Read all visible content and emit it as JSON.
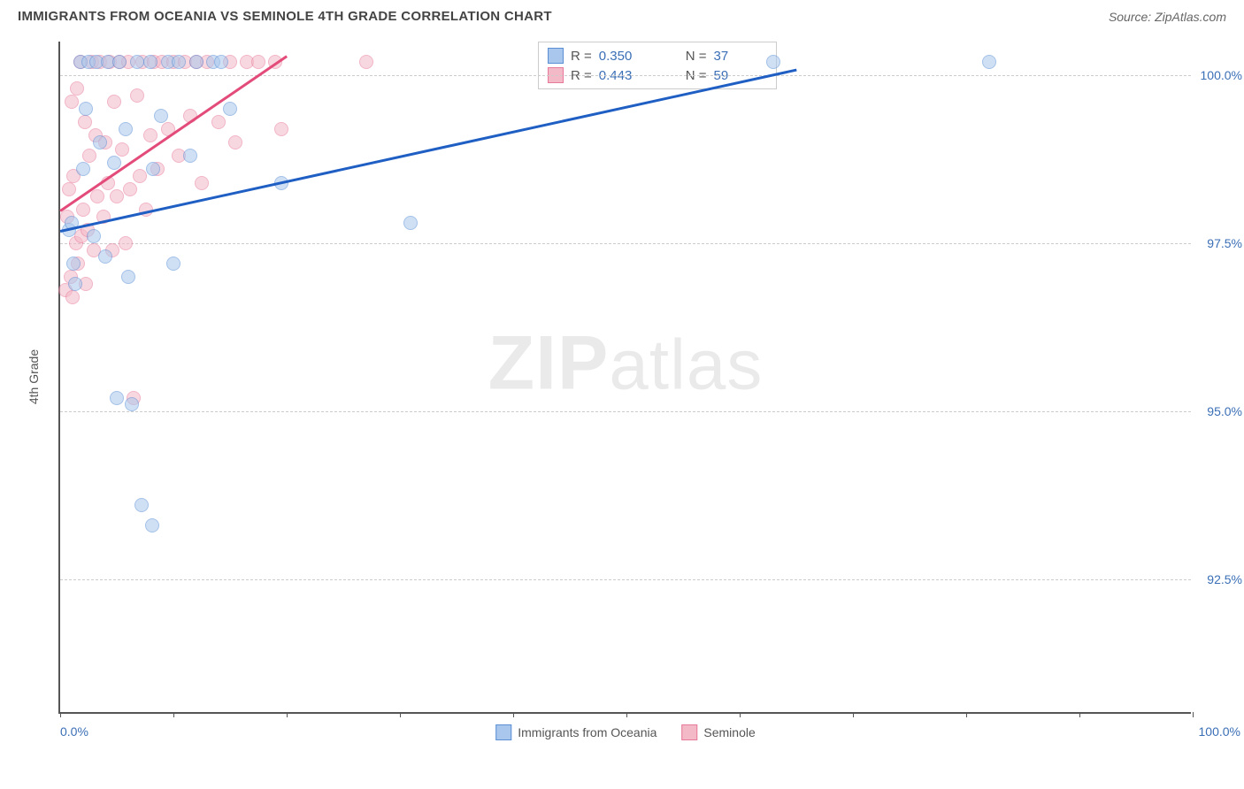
{
  "header": {
    "title": "IMMIGRANTS FROM OCEANIA VS SEMINOLE 4TH GRADE CORRELATION CHART",
    "source": "Source: ZipAtlas.com"
  },
  "watermark": {
    "bold": "ZIP",
    "light": "atlas"
  },
  "chart": {
    "type": "scatter",
    "yaxis_title": "4th Grade",
    "background_color": "#ffffff",
    "grid_color": "#cccccc",
    "axis_color": "#555555",
    "label_color": "#3b6fb6",
    "xlim": [
      0,
      100
    ],
    "ylim": [
      90.5,
      100.5
    ],
    "yticks": [
      {
        "value": 100.0,
        "label": "100.0%"
      },
      {
        "value": 97.5,
        "label": "97.5%"
      },
      {
        "value": 95.0,
        "label": "95.0%"
      },
      {
        "value": 92.5,
        "label": "92.5%"
      }
    ],
    "xticks_minor": [
      0,
      10,
      20,
      30,
      40,
      50,
      60,
      70,
      80,
      90,
      100
    ],
    "xaxis_start_label": "0.0%",
    "xaxis_end_label": "100.0%",
    "series": [
      {
        "name": "Immigrants from Oceania",
        "color_fill": "#a9c7ec",
        "color_stroke": "#5a8fd6",
        "r_value": "0.350",
        "n_value": "37",
        "trend": {
          "x1": 0,
          "y1": 97.7,
          "x2": 65,
          "y2": 100.1,
          "color": "#1f5fc4"
        },
        "points": [
          [
            0.8,
            97.7
          ],
          [
            1.0,
            97.8
          ],
          [
            1.2,
            97.2
          ],
          [
            1.3,
            96.9
          ],
          [
            1.8,
            100.2
          ],
          [
            2.0,
            98.6
          ],
          [
            2.3,
            99.5
          ],
          [
            2.5,
            100.2
          ],
          [
            3.0,
            97.6
          ],
          [
            3.2,
            100.2
          ],
          [
            3.5,
            99.0
          ],
          [
            4.0,
            97.3
          ],
          [
            4.2,
            100.2
          ],
          [
            4.8,
            98.7
          ],
          [
            5.0,
            95.2
          ],
          [
            5.2,
            100.2
          ],
          [
            5.8,
            99.2
          ],
          [
            6.0,
            97.0
          ],
          [
            6.3,
            95.1
          ],
          [
            6.8,
            100.2
          ],
          [
            7.2,
            93.6
          ],
          [
            8.0,
            100.2
          ],
          [
            8.1,
            93.3
          ],
          [
            8.2,
            98.6
          ],
          [
            8.9,
            99.4
          ],
          [
            9.5,
            100.2
          ],
          [
            10.0,
            97.2
          ],
          [
            10.5,
            100.2
          ],
          [
            11.5,
            98.8
          ],
          [
            12.0,
            100.2
          ],
          [
            13.5,
            100.2
          ],
          [
            14.2,
            100.2
          ],
          [
            15.0,
            99.5
          ],
          [
            19.5,
            98.4
          ],
          [
            30.9,
            97.8
          ],
          [
            63.0,
            100.2
          ],
          [
            82.0,
            100.2
          ]
        ]
      },
      {
        "name": "Seminole",
        "color_fill": "#f3b9c7",
        "color_stroke": "#e77a9a",
        "r_value": "0.443",
        "n_value": "59",
        "trend": {
          "x1": 0,
          "y1": 98.0,
          "x2": 20,
          "y2": 100.3,
          "color": "#e34b7a"
        },
        "points": [
          [
            0.5,
            96.8
          ],
          [
            0.6,
            97.9
          ],
          [
            0.8,
            98.3
          ],
          [
            0.9,
            97.0
          ],
          [
            1.0,
            99.6
          ],
          [
            1.1,
            96.7
          ],
          [
            1.2,
            98.5
          ],
          [
            1.4,
            97.5
          ],
          [
            1.5,
            99.8
          ],
          [
            1.6,
            97.2
          ],
          [
            1.8,
            100.2
          ],
          [
            1.9,
            97.6
          ],
          [
            2.0,
            98.0
          ],
          [
            2.2,
            99.3
          ],
          [
            2.3,
            96.9
          ],
          [
            2.4,
            97.7
          ],
          [
            2.6,
            98.8
          ],
          [
            2.8,
            100.2
          ],
          [
            3.0,
            97.4
          ],
          [
            3.1,
            99.1
          ],
          [
            3.3,
            98.2
          ],
          [
            3.5,
            100.2
          ],
          [
            3.8,
            97.9
          ],
          [
            4.0,
            99.0
          ],
          [
            4.2,
            98.4
          ],
          [
            4.4,
            100.2
          ],
          [
            4.6,
            97.4
          ],
          [
            4.8,
            99.6
          ],
          [
            5.0,
            98.2
          ],
          [
            5.2,
            100.2
          ],
          [
            5.5,
            98.9
          ],
          [
            5.8,
            97.5
          ],
          [
            6.0,
            100.2
          ],
          [
            6.2,
            98.3
          ],
          [
            6.5,
            95.2
          ],
          [
            6.8,
            99.7
          ],
          [
            7.0,
            98.5
          ],
          [
            7.3,
            100.2
          ],
          [
            7.6,
            98.0
          ],
          [
            8.0,
            99.1
          ],
          [
            8.3,
            100.2
          ],
          [
            8.6,
            98.6
          ],
          [
            9.0,
            100.2
          ],
          [
            9.5,
            99.2
          ],
          [
            10.0,
            100.2
          ],
          [
            10.5,
            98.8
          ],
          [
            11.0,
            100.2
          ],
          [
            11.5,
            99.4
          ],
          [
            12.0,
            100.2
          ],
          [
            12.5,
            98.4
          ],
          [
            13.0,
            100.2
          ],
          [
            14.0,
            99.3
          ],
          [
            15.0,
            100.2
          ],
          [
            15.5,
            99.0
          ],
          [
            16.5,
            100.2
          ],
          [
            17.5,
            100.2
          ],
          [
            19.0,
            100.2
          ],
          [
            19.5,
            99.2
          ],
          [
            27.0,
            100.2
          ]
        ]
      }
    ],
    "legend_top": {
      "r_label": "R =",
      "n_label": "N ="
    },
    "legend_bottom": [
      {
        "label": "Immigrants from Oceania",
        "fill": "#a9c7ec",
        "stroke": "#5a8fd6"
      },
      {
        "label": "Seminole",
        "fill": "#f3b9c7",
        "stroke": "#e77a9a"
      }
    ]
  }
}
